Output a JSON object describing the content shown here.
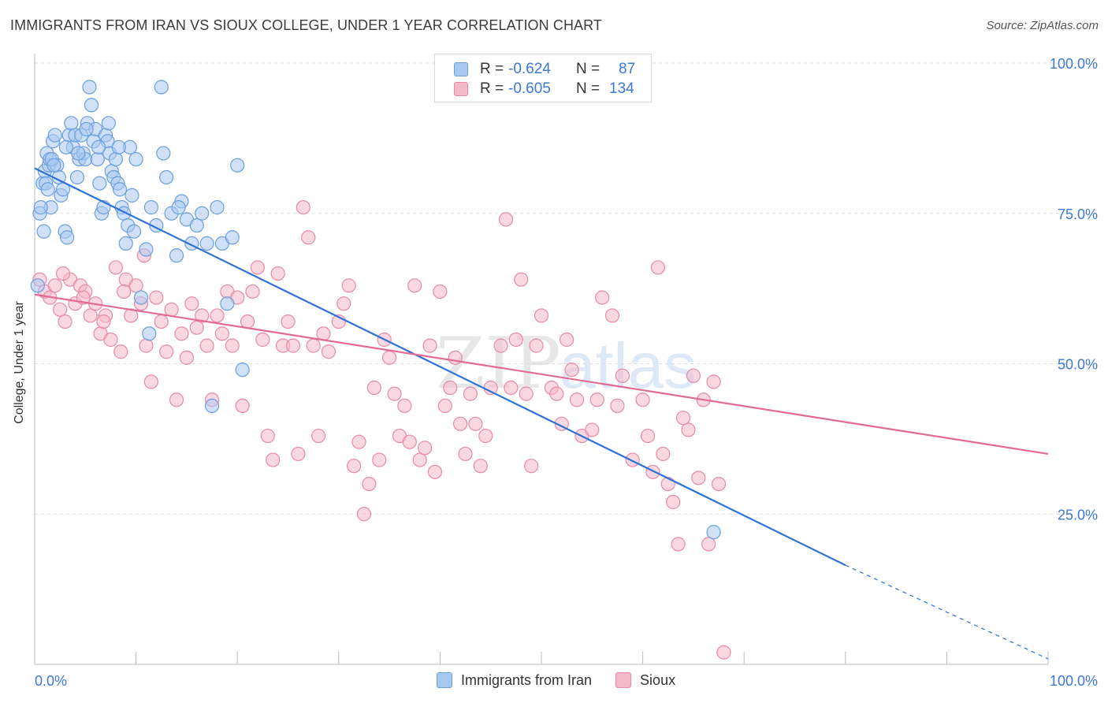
{
  "title": "IMMIGRANTS FROM IRAN VS SIOUX COLLEGE, UNDER 1 YEAR CORRELATION CHART",
  "source": "Source: ZipAtlas.com",
  "watermark": {
    "zip": "ZIP",
    "atlas": "atlas"
  },
  "colors": {
    "blue_fill": "#a9c8f0",
    "blue_stroke": "#6a9fe0",
    "blue_line": "#2f72d6",
    "pink_fill": "#f5b8ca",
    "pink_stroke": "#e889a8",
    "pink_line": "#e36b93",
    "grid": "#dcdcdc",
    "axis_label": "#3b78d8"
  },
  "legend": {
    "rows": [
      {
        "r_label": "R =",
        "r_value": "-0.624",
        "n_label": "N =",
        "n_value": "87"
      },
      {
        "r_label": "R =",
        "r_value": "-0.605",
        "n_label": "N =",
        "n_value": "134"
      }
    ]
  },
  "bottom_legend": [
    "Immigrants from Iran",
    "Sioux"
  ],
  "chart_data": {
    "type": "scatter",
    "title": "IMMIGRANTS FROM IRAN VS SIOUX COLLEGE, UNDER 1 YEAR CORRELATION CHART",
    "xlabel": "",
    "ylabel": "College, Under 1 year",
    "xlim": [
      0,
      100
    ],
    "ylim": [
      0,
      100
    ],
    "x_tick_labels": [
      "0.0%",
      "100.0%"
    ],
    "y_tick_labels": [
      "25.0%",
      "50.0%",
      "75.0%",
      "100.0%"
    ],
    "y_ticks": [
      25,
      50,
      75,
      100
    ],
    "grid": true,
    "series": [
      {
        "name": "Immigrants from Iran",
        "r": -0.624,
        "n": 87,
        "trend": {
          "x0": 0,
          "y0": 82.5,
          "x1": 80,
          "y1": 16.5,
          "dash_to_x": 100,
          "dash_to_y": 0.9
        },
        "points": [
          [
            0.5,
            75.0
          ],
          [
            0.8,
            80.0
          ],
          [
            1.0,
            82.0
          ],
          [
            1.2,
            85.0
          ],
          [
            1.4,
            83.0
          ],
          [
            1.6,
            76.0
          ],
          [
            1.8,
            87.0
          ],
          [
            2.0,
            88.0
          ],
          [
            2.2,
            83.0
          ],
          [
            2.4,
            81.0
          ],
          [
            2.6,
            78.0
          ],
          [
            2.8,
            79.0
          ],
          [
            3.0,
            72.0
          ],
          [
            3.2,
            71.0
          ],
          [
            3.4,
            88.0
          ],
          [
            3.6,
            90.0
          ],
          [
            3.8,
            86.0
          ],
          [
            4.0,
            88.0
          ],
          [
            4.2,
            81.0
          ],
          [
            4.4,
            84.0
          ],
          [
            4.6,
            88.0
          ],
          [
            4.8,
            85.0
          ],
          [
            5.0,
            84.0
          ],
          [
            5.2,
            90.0
          ],
          [
            5.4,
            96.0
          ],
          [
            5.6,
            93.0
          ],
          [
            5.8,
            87.0
          ],
          [
            6.0,
            89.0
          ],
          [
            6.2,
            84.0
          ],
          [
            6.4,
            80.0
          ],
          [
            6.6,
            75.0
          ],
          [
            6.8,
            76.0
          ],
          [
            7.0,
            88.0
          ],
          [
            7.2,
            87.0
          ],
          [
            7.4,
            85.0
          ],
          [
            7.6,
            82.0
          ],
          [
            7.8,
            81.0
          ],
          [
            8.0,
            84.0
          ],
          [
            8.2,
            80.0
          ],
          [
            8.4,
            79.0
          ],
          [
            8.6,
            76.0
          ],
          [
            8.8,
            75.0
          ],
          [
            9.0,
            70.0
          ],
          [
            9.2,
            73.0
          ],
          [
            9.4,
            86.0
          ],
          [
            9.6,
            78.0
          ],
          [
            9.8,
            72.0
          ],
          [
            10.0,
            84.0
          ],
          [
            10.5,
            61.0
          ],
          [
            11.0,
            69.0
          ],
          [
            11.5,
            76.0
          ],
          [
            12.0,
            73.0
          ],
          [
            12.5,
            96.0
          ],
          [
            13.0,
            81.0
          ],
          [
            13.5,
            75.0
          ],
          [
            14.0,
            68.0
          ],
          [
            14.5,
            77.0
          ],
          [
            15.0,
            74.0
          ],
          [
            15.5,
            70.0
          ],
          [
            16.0,
            73.0
          ],
          [
            16.5,
            75.0
          ],
          [
            17.0,
            70.0
          ],
          [
            17.5,
            43.0
          ],
          [
            18.0,
            76.0
          ],
          [
            18.5,
            70.0
          ],
          [
            19.0,
            60.0
          ],
          [
            19.5,
            71.0
          ],
          [
            20.0,
            83.0
          ],
          [
            20.5,
            49.0
          ],
          [
            0.3,
            63.0
          ],
          [
            0.6,
            76.0
          ],
          [
            0.9,
            72.0
          ],
          [
            1.1,
            80.0
          ],
          [
            1.3,
            79.0
          ],
          [
            1.5,
            84.0
          ],
          [
            1.7,
            84.0
          ],
          [
            1.9,
            83.0
          ],
          [
            3.1,
            86.0
          ],
          [
            4.3,
            85.0
          ],
          [
            5.1,
            89.0
          ],
          [
            6.3,
            86.0
          ],
          [
            7.3,
            90.0
          ],
          [
            8.3,
            86.0
          ],
          [
            11.3,
            55.0
          ],
          [
            12.7,
            85.0
          ],
          [
            14.2,
            76.0
          ],
          [
            67.0,
            22.0
          ]
        ]
      },
      {
        "name": "Sioux",
        "r": -0.605,
        "n": 134,
        "trend": {
          "x0": 0,
          "y0": 61.5,
          "x1": 100,
          "y1": 35.0
        },
        "points": [
          [
            0.5,
            64.0
          ],
          [
            1.0,
            62.0
          ],
          [
            1.5,
            61.0
          ],
          [
            2.0,
            63.0
          ],
          [
            2.5,
            59.0
          ],
          [
            3.0,
            57.0
          ],
          [
            3.5,
            64.0
          ],
          [
            4.0,
            60.0
          ],
          [
            4.5,
            63.0
          ],
          [
            5.0,
            62.0
          ],
          [
            5.5,
            58.0
          ],
          [
            6.0,
            60.0
          ],
          [
            6.5,
            55.0
          ],
          [
            7.0,
            58.0
          ],
          [
            7.5,
            54.0
          ],
          [
            8.0,
            66.0
          ],
          [
            8.5,
            52.0
          ],
          [
            9.0,
            64.0
          ],
          [
            9.5,
            58.0
          ],
          [
            10.0,
            63.0
          ],
          [
            10.5,
            60.0
          ],
          [
            11.0,
            53.0
          ],
          [
            11.5,
            47.0
          ],
          [
            12.0,
            61.0
          ],
          [
            12.5,
            57.0
          ],
          [
            13.0,
            52.0
          ],
          [
            13.5,
            59.0
          ],
          [
            14.0,
            44.0
          ],
          [
            14.5,
            55.0
          ],
          [
            15.0,
            51.0
          ],
          [
            15.5,
            60.0
          ],
          [
            16.0,
            56.0
          ],
          [
            16.5,
            58.0
          ],
          [
            17.0,
            53.0
          ],
          [
            17.5,
            44.0
          ],
          [
            18.0,
            58.0
          ],
          [
            18.5,
            55.0
          ],
          [
            19.0,
            62.0
          ],
          [
            19.5,
            53.0
          ],
          [
            20.0,
            61.0
          ],
          [
            20.5,
            43.0
          ],
          [
            21.0,
            57.0
          ],
          [
            21.5,
            62.0
          ],
          [
            22.0,
            66.0
          ],
          [
            22.5,
            54.0
          ],
          [
            23.0,
            38.0
          ],
          [
            23.5,
            34.0
          ],
          [
            24.0,
            65.0
          ],
          [
            24.5,
            53.0
          ],
          [
            25.0,
            57.0
          ],
          [
            25.5,
            53.0
          ],
          [
            26.0,
            35.0
          ],
          [
            26.5,
            76.0
          ],
          [
            27.0,
            71.0
          ],
          [
            27.5,
            53.0
          ],
          [
            28.0,
            38.0
          ],
          [
            28.5,
            55.0
          ],
          [
            29.0,
            52.0
          ],
          [
            30.0,
            57.0
          ],
          [
            30.5,
            60.0
          ],
          [
            31.0,
            63.0
          ],
          [
            31.5,
            33.0
          ],
          [
            32.0,
            37.0
          ],
          [
            32.5,
            25.0
          ],
          [
            33.0,
            30.0
          ],
          [
            33.5,
            46.0
          ],
          [
            34.0,
            34.0
          ],
          [
            34.5,
            54.0
          ],
          [
            35.0,
            51.0
          ],
          [
            35.5,
            45.0
          ],
          [
            36.0,
            38.0
          ],
          [
            36.5,
            43.0
          ],
          [
            37.0,
            37.0
          ],
          [
            37.5,
            63.0
          ],
          [
            38.0,
            34.0
          ],
          [
            38.5,
            36.0
          ],
          [
            39.0,
            53.0
          ],
          [
            39.5,
            32.0
          ],
          [
            40.0,
            62.0
          ],
          [
            40.5,
            43.0
          ],
          [
            41.0,
            46.0
          ],
          [
            41.5,
            51.0
          ],
          [
            42.0,
            40.0
          ],
          [
            42.5,
            35.0
          ],
          [
            43.0,
            45.0
          ],
          [
            43.5,
            40.0
          ],
          [
            44.0,
            33.0
          ],
          [
            44.5,
            38.0
          ],
          [
            45.0,
            46.0
          ],
          [
            46.0,
            53.0
          ],
          [
            46.5,
            74.0
          ],
          [
            47.0,
            46.0
          ],
          [
            47.5,
            54.0
          ],
          [
            48.0,
            64.0
          ],
          [
            48.5,
            45.0
          ],
          [
            49.0,
            33.0
          ],
          [
            49.5,
            53.0
          ],
          [
            50.0,
            58.0
          ],
          [
            51.0,
            46.0
          ],
          [
            51.5,
            45.0
          ],
          [
            52.0,
            40.0
          ],
          [
            52.5,
            54.0
          ],
          [
            53.0,
            49.0
          ],
          [
            53.5,
            44.0
          ],
          [
            54.0,
            38.0
          ],
          [
            55.0,
            39.0
          ],
          [
            55.5,
            44.0
          ],
          [
            56.0,
            61.0
          ],
          [
            57.0,
            58.0
          ],
          [
            57.5,
            43.0
          ],
          [
            58.0,
            48.0
          ],
          [
            59.0,
            34.0
          ],
          [
            60.0,
            44.0
          ],
          [
            60.5,
            38.0
          ],
          [
            61.0,
            32.0
          ],
          [
            61.5,
            66.0
          ],
          [
            62.0,
            35.0
          ],
          [
            62.5,
            30.0
          ],
          [
            63.0,
            27.0
          ],
          [
            63.5,
            20.0
          ],
          [
            64.0,
            41.0
          ],
          [
            64.5,
            39.0
          ],
          [
            65.0,
            48.0
          ],
          [
            65.5,
            31.0
          ],
          [
            66.0,
            44.0
          ],
          [
            66.5,
            20.0
          ],
          [
            67.0,
            47.0
          ],
          [
            67.5,
            30.0
          ],
          [
            68.0,
            2.0
          ],
          [
            2.8,
            65.0
          ],
          [
            4.8,
            61.0
          ],
          [
            6.8,
            57.0
          ],
          [
            8.8,
            62.0
          ],
          [
            10.8,
            68.0
          ]
        ]
      }
    ]
  }
}
